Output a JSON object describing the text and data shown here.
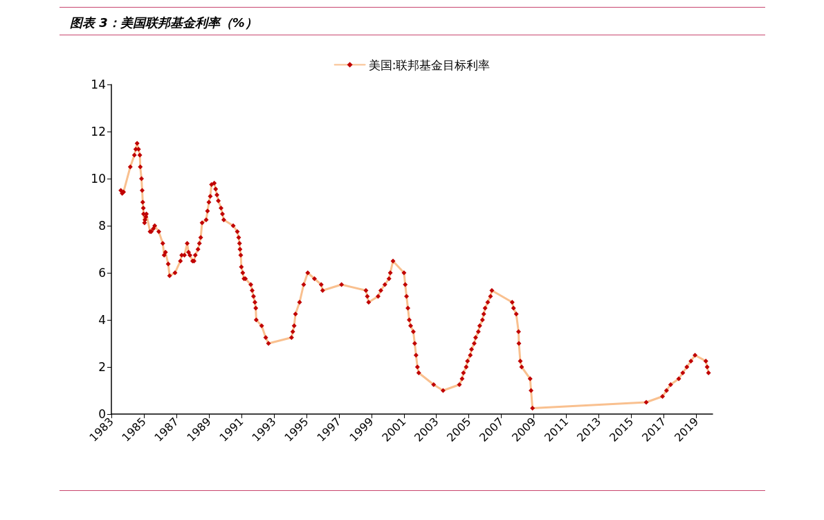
{
  "chart_data": {
    "type": "line",
    "title": "图表 3：美国联邦基金利率（%）",
    "x": [
      "1983-08",
      "1983-09",
      "1983-10",
      "1984-03",
      "1984-06",
      "1984-07",
      "1984-08",
      "1984-09",
      "1984-10-02",
      "1984-10-11",
      "1984-11-08",
      "1984-11-23",
      "1984-12-06",
      "1984-12-18",
      "1984-12-24",
      "1985-01-15",
      "1985-01-24",
      "1985-02-14",
      "1985-02-25",
      "1985-05-20",
      "1985-06-15",
      "1985-08",
      "1985-09",
      "1985-12",
      "1986-03",
      "1986-04",
      "1986-05",
      "1986-07",
      "1986-08",
      "1986-12",
      "1987-04",
      "1987-05",
      "1987-07",
      "1987-09",
      "1987-10",
      "1987-11",
      "1988-01",
      "1988-02",
      "1988-03",
      "1988-05",
      "1988-06",
      "1988-07",
      "1988-08",
      "1988-11",
      "1988-12",
      "1989-01",
      "1989-02",
      "1989-03",
      "1989-05",
      "1989-06",
      "1989-07",
      "1989-08",
      "1989-10",
      "1989-11",
      "1989-12",
      "1990-07",
      "1990-10",
      "1990-11",
      "1990-11-20",
      "1990-12",
      "1990-12-18",
      "1991-01",
      "1991-02",
      "1991-03",
      "1991-04",
      "1991-08",
      "1991-09",
      "1991-10",
      "1991-11",
      "1991-11-20",
      "1991-12",
      "1992-04",
      "1992-07",
      "1992-09",
      "1994-02",
      "1994-03",
      "1994-04",
      "1994-05",
      "1994-08",
      "1994-11",
      "1995-02",
      "1995-07",
      "1995-12",
      "1996-01",
      "1997-03",
      "1998-09",
      "1998-10",
      "1998-11",
      "1999-06",
      "1999-08",
      "1999-11",
      "2000-02",
      "2000-03",
      "2000-05",
      "2001-01-03",
      "2001-01-31",
      "2001-03",
      "2001-04",
      "2001-05",
      "2001-06",
      "2001-08",
      "2001-09",
      "2001-10",
      "2001-11",
      "2001-12",
      "2002-11",
      "2003-06",
      "2004-06",
      "2004-08",
      "2004-09",
      "2004-11",
      "2004-12",
      "2005-02",
      "2005-03",
      "2005-05",
      "2005-06",
      "2005-08",
      "2005-09",
      "2005-11",
      "2005-12",
      "2006-01",
      "2006-03",
      "2006-05",
      "2006-06",
      "2007-09",
      "2007-10",
      "2007-12",
      "2008-01-22",
      "2008-01-30",
      "2008-03",
      "2008-04",
      "2008-10-08",
      "2008-10-29",
      "2008-12",
      "2015-12",
      "2016-12",
      "2017-03",
      "2017-06",
      "2017-12",
      "2018-03",
      "2018-06",
      "2018-09",
      "2018-12",
      "2019-08",
      "2019-09",
      "2019-10"
    ],
    "series": [
      {
        "name": "美国:联邦基金目标利率",
        "color": "#c00000",
        "values": [
          9.5,
          9.375,
          9.4375,
          10.5,
          11,
          11.25,
          11.5,
          11.25,
          11,
          10.5,
          10,
          9.5,
          9,
          8.75,
          8.5,
          8.125,
          8.25,
          8.375,
          8.5,
          7.75,
          7.75,
          7.875,
          8,
          7.75,
          7.25,
          6.75,
          6.875,
          6.375,
          5.875,
          6,
          6.5,
          6.75,
          6.75,
          7.25,
          6.875,
          6.75,
          6.5,
          6.5,
          6.75,
          7,
          7.25,
          7.5,
          8.125,
          8.25,
          8.625,
          9,
          9.25,
          9.75,
          9.8125,
          9.5625,
          9.3125,
          9.0625,
          8.75,
          8.5,
          8.25,
          8,
          7.75,
          7.5,
          7.25,
          7,
          6.75,
          6.25,
          6,
          5.75,
          5.75,
          5.5,
          5.25,
          5,
          4.75,
          4.5,
          4,
          3.75,
          3.25,
          3,
          3.25,
          3.5,
          3.75,
          4.25,
          4.75,
          5.5,
          6,
          5.75,
          5.5,
          5.25,
          5.5,
          5.25,
          5,
          4.75,
          5,
          5.25,
          5.5,
          5.75,
          6,
          6.5,
          6,
          5.5,
          5,
          4.5,
          4,
          3.75,
          3.5,
          3,
          2.5,
          2,
          1.75,
          1.25,
          1,
          1.25,
          1.5,
          1.75,
          2,
          2.25,
          2.5,
          2.75,
          3,
          3.25,
          3.5,
          3.75,
          4,
          4.25,
          4.5,
          4.75,
          5,
          5.25,
          4.75,
          4.5,
          4.25,
          3.5,
          3,
          2.25,
          2,
          1.5,
          1,
          0.25,
          0.5,
          0.75,
          1,
          1.25,
          1.5,
          1.75,
          2,
          2.25,
          2.5,
          2.25,
          2,
          1.75
        ]
      }
    ],
    "xlim": [
      "1983",
      "2020"
    ],
    "xticks": [
      {
        "value": "1983",
        "label": "1983"
      },
      {
        "value": "1985",
        "label": "1985"
      },
      {
        "value": "1987",
        "label": "1987"
      },
      {
        "value": "1989",
        "label": "1989"
      },
      {
        "value": "1991",
        "label": "1991"
      },
      {
        "value": "1993",
        "label": "1993"
      },
      {
        "value": "1995",
        "label": "1995"
      },
      {
        "value": "1997",
        "label": "1997"
      },
      {
        "value": "1999",
        "label": "1999"
      },
      {
        "value": "2001",
        "label": "2001"
      },
      {
        "value": "2003",
        "label": "2003"
      },
      {
        "value": "2005",
        "label": "2005"
      },
      {
        "value": "2007",
        "label": "2007"
      },
      {
        "value": "2009",
        "label": "2009"
      },
      {
        "value": "2011",
        "label": "2011"
      },
      {
        "value": "2013",
        "label": "2013"
      },
      {
        "value": "2015",
        "label": "2015"
      },
      {
        "value": "2017",
        "label": "2017"
      },
      {
        "value": "2019",
        "label": "2019"
      }
    ],
    "ylim": [
      0,
      14
    ],
    "yticks": [
      0,
      2,
      4,
      6,
      8,
      10,
      12,
      14
    ],
    "grid": false,
    "legend": "top",
    "marker": "diamond",
    "line_style": "solid"
  }
}
